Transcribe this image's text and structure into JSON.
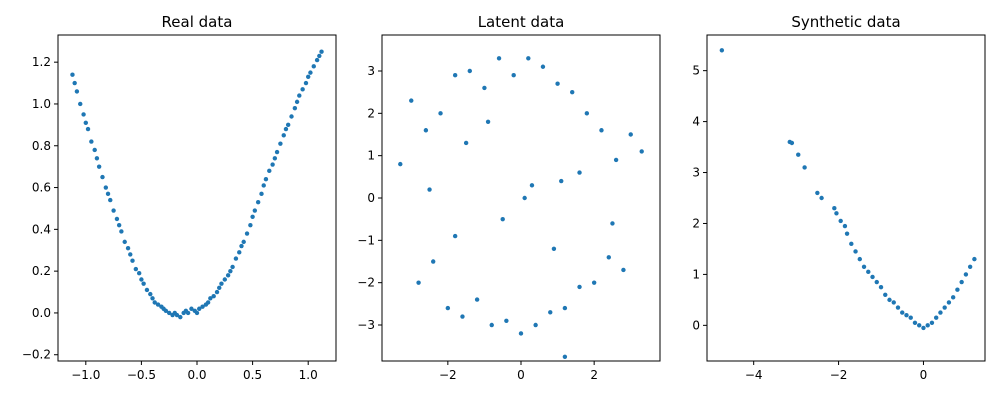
{
  "chart_data": [
    {
      "type": "scatter",
      "title": "Real data",
      "xlabel": "",
      "ylabel": "",
      "xlim": [
        -1.25,
        1.25
      ],
      "ylim": [
        -0.23,
        1.33
      ],
      "xticks": [
        -1.0,
        -0.5,
        0.0,
        0.5,
        1.0
      ],
      "xtick_labels": [
        "−1.0",
        "−0.5",
        "0.0",
        "0.5",
        "1.0"
      ],
      "yticks": [
        -0.2,
        0.0,
        0.2,
        0.4,
        0.6,
        0.8,
        1.0,
        1.2
      ],
      "ytick_labels": [
        "−0.2",
        "0.0",
        "0.2",
        "0.4",
        "0.6",
        "0.8",
        "1.0",
        "1.2"
      ],
      "series": [
        {
          "color": "#1f77b4",
          "x": [
            -1.12,
            -1.1,
            -1.08,
            -1.05,
            -1.02,
            -1.0,
            -0.98,
            -0.95,
            -0.92,
            -0.9,
            -0.88,
            -0.85,
            -0.82,
            -0.8,
            -0.78,
            -0.75,
            -0.72,
            -0.7,
            -0.68,
            -0.65,
            -0.62,
            -0.6,
            -0.58,
            -0.55,
            -0.52,
            -0.5,
            -0.48,
            -0.45,
            -0.42,
            -0.4,
            -0.38,
            -0.35,
            -0.32,
            -0.3,
            -0.28,
            -0.25,
            -0.22,
            -0.2,
            -0.18,
            -0.15,
            -0.12,
            -0.1,
            -0.08,
            -0.05,
            -0.02,
            0.0,
            0.02,
            0.05,
            0.08,
            0.1,
            0.12,
            0.15,
            0.18,
            0.2,
            0.22,
            0.25,
            0.28,
            0.3,
            0.32,
            0.35,
            0.38,
            0.4,
            0.42,
            0.45,
            0.48,
            0.5,
            0.52,
            0.55,
            0.58,
            0.6,
            0.62,
            0.65,
            0.68,
            0.7,
            0.72,
            0.75,
            0.78,
            0.8,
            0.82,
            0.85,
            0.88,
            0.9,
            0.92,
            0.95,
            0.98,
            1.0,
            1.02,
            1.05,
            1.08,
            1.1,
            1.12
          ],
          "y": [
            1.14,
            1.1,
            1.06,
            1.0,
            0.95,
            0.91,
            0.88,
            0.82,
            0.78,
            0.74,
            0.7,
            0.65,
            0.6,
            0.57,
            0.54,
            0.49,
            0.45,
            0.42,
            0.39,
            0.34,
            0.31,
            0.28,
            0.25,
            0.21,
            0.19,
            0.16,
            0.14,
            0.11,
            0.09,
            0.07,
            0.05,
            0.04,
            0.03,
            0.02,
            0.01,
            0.0,
            -0.01,
            0.0,
            -0.01,
            -0.02,
            0.0,
            0.01,
            0.0,
            0.02,
            0.01,
            0.0,
            0.02,
            0.03,
            0.04,
            0.05,
            0.07,
            0.08,
            0.1,
            0.12,
            0.14,
            0.16,
            0.18,
            0.2,
            0.22,
            0.26,
            0.29,
            0.32,
            0.34,
            0.38,
            0.42,
            0.46,
            0.49,
            0.53,
            0.57,
            0.61,
            0.64,
            0.68,
            0.71,
            0.74,
            0.77,
            0.81,
            0.85,
            0.88,
            0.9,
            0.94,
            0.98,
            1.01,
            1.04,
            1.07,
            1.1,
            1.13,
            1.15,
            1.18,
            1.21,
            1.23,
            1.25
          ]
        }
      ]
    },
    {
      "type": "scatter",
      "title": "Latent data",
      "xlabel": "",
      "ylabel": "",
      "xlim": [
        -3.8,
        3.8
      ],
      "ylim": [
        -3.85,
        3.85
      ],
      "xticks": [
        -2,
        0,
        2
      ],
      "xtick_labels": [
        "−2",
        "0",
        "2"
      ],
      "yticks": [
        -3,
        -2,
        -1,
        0,
        1,
        2,
        3
      ],
      "ytick_labels": [
        "−3",
        "−2",
        "−1",
        "0",
        "1",
        "2",
        "3"
      ],
      "series": [
        {
          "color": "#1f77b4",
          "x": [
            -3.3,
            -3.0,
            -2.8,
            -2.6,
            -2.4,
            -2.2,
            -2.0,
            -1.8,
            -1.6,
            -1.4,
            -1.2,
            -1.0,
            -0.8,
            -0.6,
            -0.4,
            -0.2,
            0.0,
            0.2,
            0.4,
            0.6,
            0.8,
            1.0,
            1.2,
            1.4,
            1.6,
            1.8,
            2.0,
            2.2,
            2.4,
            2.6,
            2.8,
            3.0,
            3.3,
            0.3,
            -0.5,
            1.1,
            -1.5,
            2.5,
            -2.5,
            0.9,
            -0.9,
            1.6,
            -1.8,
            0.1,
            1.2
          ],
          "y": [
            0.8,
            2.3,
            -2.0,
            1.6,
            -1.5,
            2.0,
            -2.6,
            2.9,
            -2.8,
            3.0,
            -2.4,
            2.6,
            -3.0,
            3.3,
            -2.9,
            2.9,
            -3.2,
            3.3,
            -3.0,
            3.1,
            -2.7,
            2.7,
            -2.6,
            2.5,
            -2.1,
            2.0,
            -2.0,
            1.6,
            -1.4,
            0.9,
            -1.7,
            1.5,
            1.1,
            0.3,
            -0.5,
            0.4,
            1.3,
            -0.6,
            0.2,
            -1.2,
            1.8,
            0.6,
            -0.9,
            0.0,
            -3.75
          ]
        }
      ]
    },
    {
      "type": "scatter",
      "title": "Synthetic data",
      "xlabel": "",
      "ylabel": "",
      "xlim": [
        -5.1,
        1.45
      ],
      "ylim": [
        -0.7,
        5.7
      ],
      "xticks": [
        -4,
        -2,
        0
      ],
      "xtick_labels": [
        "−4",
        "−2",
        "0"
      ],
      "yticks": [
        0,
        1,
        2,
        3,
        4,
        5
      ],
      "ytick_labels": [
        "0",
        "1",
        "2",
        "3",
        "4",
        "5"
      ],
      "series": [
        {
          "color": "#1f77b4",
          "x": [
            -4.75,
            -3.15,
            -3.1,
            -2.95,
            -2.8,
            -2.5,
            -2.4,
            -2.1,
            -2.05,
            -1.95,
            -1.85,
            -1.8,
            -1.7,
            -1.6,
            -1.5,
            -1.4,
            -1.3,
            -1.2,
            -1.1,
            -1.0,
            -0.9,
            -0.8,
            -0.7,
            -0.6,
            -0.5,
            -0.4,
            -0.3,
            -0.2,
            -0.1,
            0.0,
            0.1,
            0.2,
            0.3,
            0.4,
            0.5,
            0.6,
            0.7,
            0.8,
            0.9,
            1.0,
            1.1,
            1.2
          ],
          "y": [
            5.4,
            3.6,
            3.58,
            3.35,
            3.1,
            2.6,
            2.5,
            2.3,
            2.2,
            2.05,
            1.95,
            1.8,
            1.6,
            1.45,
            1.3,
            1.15,
            1.05,
            0.95,
            0.85,
            0.75,
            0.6,
            0.5,
            0.45,
            0.35,
            0.25,
            0.2,
            0.15,
            0.05,
            0.0,
            -0.05,
            0.0,
            0.05,
            0.15,
            0.25,
            0.35,
            0.45,
            0.55,
            0.7,
            0.85,
            1.0,
            1.15,
            1.3
          ]
        }
      ]
    }
  ]
}
